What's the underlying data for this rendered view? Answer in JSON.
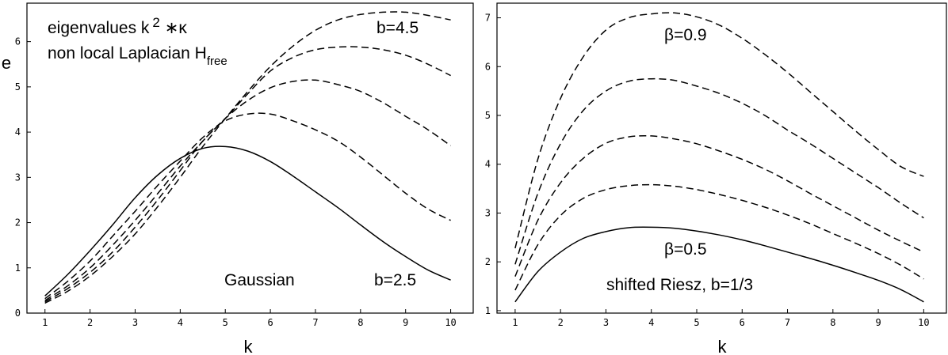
{
  "chart_data": [
    {
      "type": "line",
      "xlabel": "k",
      "ylabel": "e",
      "xlim": [
        0.6,
        10.5
      ],
      "ylim": [
        0,
        6.85
      ],
      "xticks": [
        "1",
        "2",
        "3",
        "4",
        "5",
        "6",
        "7",
        "8",
        "9",
        "10"
      ],
      "yticks": [
        "0",
        "1",
        "2",
        "3",
        "4",
        "5",
        "6"
      ],
      "annotations": {
        "title_line1": "eigenvalues k",
        "title_sup": "2",
        "title_tail": " ∗κ",
        "title_line2": "non local Laplacian H",
        "title_line2_sub": "free",
        "top_label": "b=4.5",
        "bottom_label": "b=2.5",
        "family_label": "Gaussian"
      },
      "x": [
        1,
        1.5,
        2,
        2.5,
        3,
        3.5,
        4,
        4.5,
        5,
        5.5,
        6,
        6.5,
        7,
        7.5,
        8,
        8.5,
        9,
        9.5,
        10
      ],
      "series": [
        {
          "style": "solid",
          "values": [
            0.38,
            0.85,
            1.38,
            1.95,
            2.55,
            3.05,
            3.42,
            3.64,
            3.68,
            3.58,
            3.35,
            3.03,
            2.68,
            2.33,
            1.95,
            1.58,
            1.25,
            0.95,
            0.73
          ]
        },
        {
          "style": "dashed",
          "values": [
            0.32,
            0.7,
            1.15,
            1.7,
            2.25,
            2.82,
            3.36,
            3.88,
            4.25,
            4.4,
            4.4,
            4.25,
            4.05,
            3.8,
            3.45,
            3.05,
            2.65,
            2.3,
            2.05
          ]
        },
        {
          "style": "dashed",
          "values": [
            0.28,
            0.6,
            1.0,
            1.5,
            2.05,
            2.64,
            3.25,
            3.8,
            4.3,
            4.7,
            4.98,
            5.12,
            5.15,
            5.05,
            4.9,
            4.65,
            4.35,
            4.05,
            3.7
          ]
        },
        {
          "style": "dashed",
          "values": [
            0.25,
            0.54,
            0.9,
            1.35,
            1.9,
            2.5,
            3.15,
            3.8,
            4.3,
            4.85,
            5.35,
            5.65,
            5.82,
            5.88,
            5.88,
            5.82,
            5.7,
            5.5,
            5.25
          ]
        },
        {
          "style": "dashed",
          "values": [
            0.22,
            0.48,
            0.82,
            1.25,
            1.75,
            2.35,
            3.0,
            3.68,
            4.3,
            4.9,
            5.45,
            5.9,
            6.25,
            6.48,
            6.6,
            6.65,
            6.65,
            6.58,
            6.48
          ]
        }
      ]
    },
    {
      "type": "line",
      "xlabel": "k",
      "ylabel": "",
      "xlim": [
        0.6,
        10.5
      ],
      "ylim": [
        0.95,
        7.3
      ],
      "xticks": [
        "1",
        "2",
        "3",
        "4",
        "5",
        "6",
        "7",
        "8",
        "9",
        "10"
      ],
      "yticks": [
        "1",
        "2",
        "3",
        "4",
        "5",
        "6",
        "7"
      ],
      "annotations": {
        "top_label": "β=0.9",
        "bottom_label": "β=0.5",
        "family_label": "shifted Riesz, b=1/3"
      },
      "x": [
        1,
        1.5,
        2,
        2.5,
        3,
        3.5,
        4,
        4.5,
        5,
        5.5,
        6,
        6.5,
        7,
        7.5,
        8,
        8.5,
        9,
        9.5,
        10
      ],
      "series": [
        {
          "style": "solid",
          "values": [
            1.18,
            1.8,
            2.2,
            2.48,
            2.62,
            2.7,
            2.71,
            2.69,
            2.63,
            2.55,
            2.45,
            2.33,
            2.2,
            2.07,
            1.93,
            1.78,
            1.62,
            1.43,
            1.18
          ]
        },
        {
          "style": "dashed",
          "values": [
            1.42,
            2.35,
            2.95,
            3.3,
            3.48,
            3.56,
            3.58,
            3.55,
            3.48,
            3.38,
            3.26,
            3.12,
            2.96,
            2.78,
            2.58,
            2.38,
            2.17,
            1.93,
            1.65
          ]
        },
        {
          "style": "dashed",
          "values": [
            1.7,
            2.85,
            3.62,
            4.12,
            4.43,
            4.56,
            4.58,
            4.52,
            4.42,
            4.27,
            4.1,
            3.9,
            3.66,
            3.4,
            3.15,
            2.9,
            2.65,
            2.42,
            2.2
          ]
        },
        {
          "style": "dashed",
          "values": [
            1.95,
            3.4,
            4.42,
            5.1,
            5.5,
            5.7,
            5.75,
            5.72,
            5.6,
            5.45,
            5.25,
            5.0,
            4.7,
            4.42,
            4.12,
            3.82,
            3.52,
            3.2,
            2.9
          ]
        },
        {
          "style": "dashed",
          "values": [
            2.28,
            4.1,
            5.35,
            6.2,
            6.75,
            7.0,
            7.08,
            7.1,
            7.02,
            6.85,
            6.58,
            6.25,
            5.88,
            5.48,
            5.08,
            4.68,
            4.3,
            3.95,
            3.75
          ]
        }
      ]
    }
  ]
}
